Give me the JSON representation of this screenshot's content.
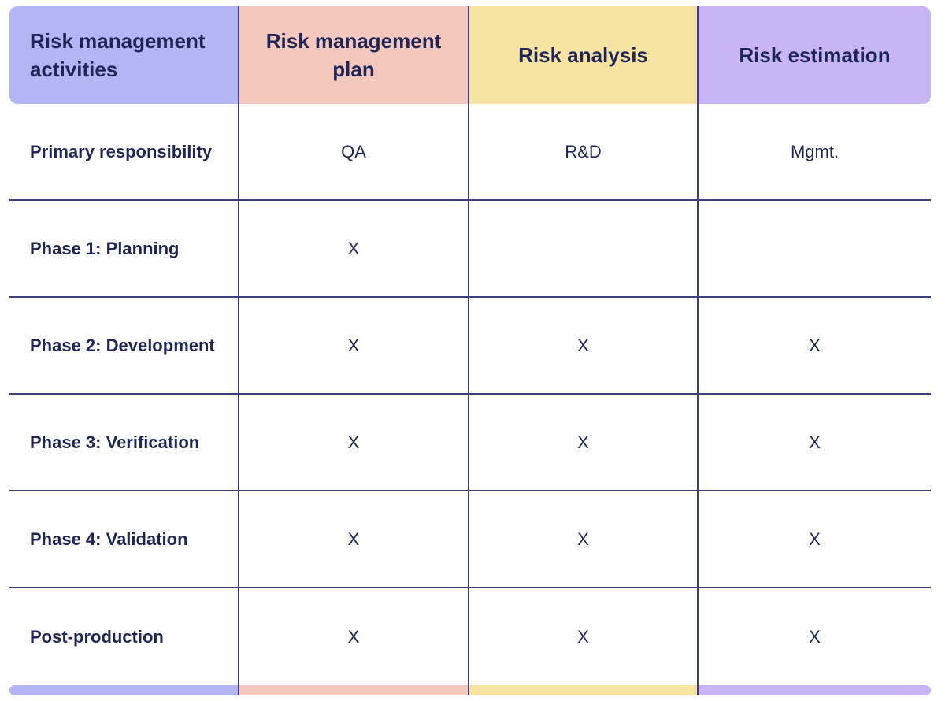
{
  "headers": [
    "Risk management activities",
    "Risk management plan",
    "Risk analysis",
    "Risk estimation"
  ],
  "rows": [
    {
      "label": "Primary responsibility",
      "cells": [
        "QA",
        "R&D",
        "Mgmt."
      ]
    },
    {
      "label": "Phase 1: Planning",
      "cells": [
        "X",
        "",
        ""
      ]
    },
    {
      "label": "Phase 2: Development",
      "cells": [
        "X",
        "X",
        "X"
      ]
    },
    {
      "label": "Phase 3: Verification",
      "cells": [
        "X",
        "X",
        "X"
      ]
    },
    {
      "label": "Phase 4: Validation",
      "cells": [
        "X",
        "X",
        "X"
      ]
    },
    {
      "label": "Post-production",
      "cells": [
        "X",
        "X",
        "X"
      ]
    }
  ],
  "colors": {
    "col0": "#b3b5f4",
    "col1": "#f5c8bd",
    "col2": "#f7e3a2",
    "col3": "#c7b5f5",
    "text": "#1f2556",
    "rule": "#3b4178"
  }
}
